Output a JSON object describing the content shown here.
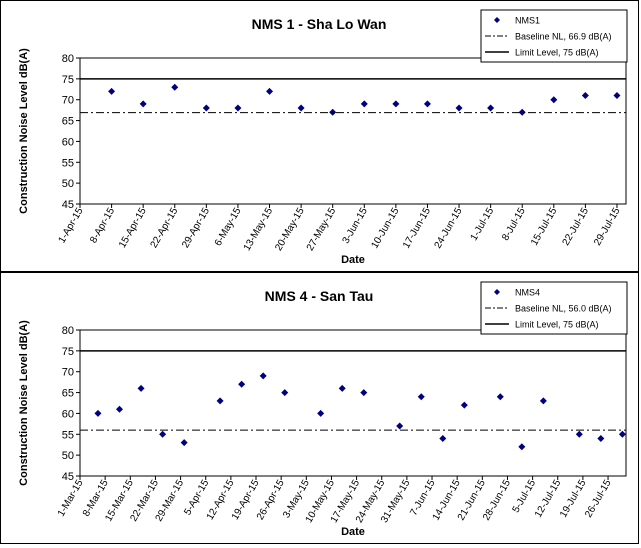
{
  "colors": {
    "marker": "#000080",
    "line": "#000000"
  },
  "chart_data": [
    {
      "type": "scatter",
      "title": "NMS 1 - Sha Lo Wan",
      "xlabel": "Date",
      "ylabel": "Construction Noise Level  dB(A)",
      "ylim": [
        45,
        80
      ],
      "yticks": [
        45,
        50,
        55,
        60,
        65,
        70,
        75,
        80
      ],
      "xlim": [
        "2015-04-01",
        "2015-07-31"
      ],
      "xtick_labels": [
        "1-Apr-15",
        "8-Apr-15",
        "15-Apr-15",
        "22-Apr-15",
        "29-Apr-15",
        "6-May-15",
        "13-May-15",
        "20-May-15",
        "27-May-15",
        "3-Jun-15",
        "10-Jun-15",
        "17-Jun-15",
        "24-Jun-15",
        "1-Jul-15",
        "8-Jul-15",
        "15-Jul-15",
        "22-Jul-15",
        "29-Jul-15"
      ],
      "xtick_dates": [
        "2015-04-01",
        "2015-04-08",
        "2015-04-15",
        "2015-04-22",
        "2015-04-29",
        "2015-05-06",
        "2015-05-13",
        "2015-05-20",
        "2015-05-27",
        "2015-06-03",
        "2015-06-10",
        "2015-06-17",
        "2015-06-24",
        "2015-07-01",
        "2015-07-08",
        "2015-07-15",
        "2015-07-22",
        "2015-07-29"
      ],
      "legend_position": "top-right",
      "series": [
        {
          "name": "NMS1",
          "kind": "markers",
          "x": [
            "2015-04-08",
            "2015-04-15",
            "2015-04-22",
            "2015-04-29",
            "2015-05-06",
            "2015-05-13",
            "2015-05-20",
            "2015-05-27",
            "2015-06-03",
            "2015-06-10",
            "2015-06-17",
            "2015-06-24",
            "2015-07-01",
            "2015-07-08",
            "2015-07-15",
            "2015-07-22",
            "2015-07-29"
          ],
          "y": [
            72,
            69,
            73,
            68,
            68,
            72,
            68,
            67,
            69,
            69,
            69,
            68,
            68,
            67,
            70,
            71,
            71
          ]
        },
        {
          "name": "Baseline NL, 66.9 dB(A)",
          "kind": "dashdot",
          "value": 66.9
        },
        {
          "name": "Limit Level, 75 dB(A)",
          "kind": "solid",
          "value": 75
        }
      ]
    },
    {
      "type": "scatter",
      "title": "NMS 4 - San Tau",
      "xlabel": "Date",
      "ylabel": "Construction Noise Level  dB(A)",
      "ylim": [
        45,
        80
      ],
      "yticks": [
        45,
        50,
        55,
        60,
        65,
        70,
        75,
        80
      ],
      "xlim": [
        "2015-03-01",
        "2015-07-31"
      ],
      "xtick_labels": [
        "1-Mar-15",
        "8-Mar-15",
        "15-Mar-15",
        "22-Mar-15",
        "29-Mar-15",
        "5-Apr-15",
        "12-Apr-15",
        "19-Apr-15",
        "26-Apr-15",
        "3-May-15",
        "10-May-15",
        "17-May-15",
        "24-May-15",
        "31-May-15",
        "7-Jun-15",
        "14-Jun-15",
        "21-Jun-15",
        "28-Jun-15",
        "5-Jul-15",
        "12-Jul-15",
        "19-Jul-15",
        "26-Jul-15"
      ],
      "xtick_dates": [
        "2015-03-01",
        "2015-03-08",
        "2015-03-15",
        "2015-03-22",
        "2015-03-29",
        "2015-04-05",
        "2015-04-12",
        "2015-04-19",
        "2015-04-26",
        "2015-05-03",
        "2015-05-10",
        "2015-05-17",
        "2015-05-24",
        "2015-05-31",
        "2015-06-07",
        "2015-06-14",
        "2015-06-21",
        "2015-06-28",
        "2015-07-05",
        "2015-07-12",
        "2015-07-19",
        "2015-07-26"
      ],
      "legend_position": "top-right",
      "series": [
        {
          "name": "NMS4",
          "kind": "markers",
          "x": [
            "2015-03-06",
            "2015-03-12",
            "2015-03-18",
            "2015-03-24",
            "2015-03-30",
            "2015-04-09",
            "2015-04-15",
            "2015-04-21",
            "2015-04-27",
            "2015-05-07",
            "2015-05-13",
            "2015-05-19",
            "2015-05-29",
            "2015-06-04",
            "2015-06-10",
            "2015-06-16",
            "2015-06-26",
            "2015-07-02",
            "2015-07-08",
            "2015-07-18",
            "2015-07-24",
            "2015-07-30"
          ],
          "y": [
            60,
            61,
            66,
            55,
            53,
            63,
            67,
            69,
            65,
            60,
            66,
            65,
            57,
            64,
            54,
            62,
            64,
            52,
            63,
            55,
            54,
            55
          ]
        },
        {
          "name": "Baseline NL, 56.0 dB(A)",
          "kind": "dashdot",
          "value": 56.0
        },
        {
          "name": "Limit Level, 75 dB(A)",
          "kind": "solid",
          "value": 75
        }
      ]
    }
  ]
}
